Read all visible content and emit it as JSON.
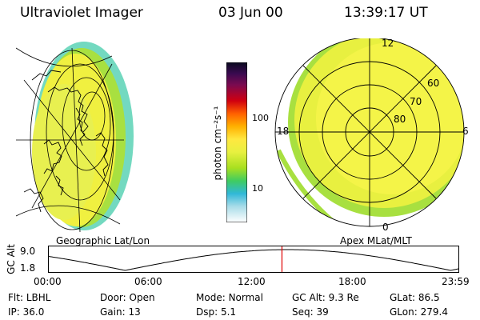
{
  "header": {
    "instrument": "Ultraviolet Imager",
    "date": "03 Jun 00",
    "time": "13:39:17 UT"
  },
  "left_panel": {
    "caption": "Geographic Lat/Lon"
  },
  "right_panel": {
    "caption": "Apex MLat/MLT",
    "mlt_labels": {
      "top": "12",
      "left": "18",
      "right": "6",
      "bottom": "0"
    },
    "lat_labels": [
      "60",
      "70",
      "80"
    ]
  },
  "colorbar": {
    "unit_label": "photon cm⁻²s⁻¹",
    "ticks": [
      "100",
      "10"
    ],
    "colors": [
      "#0a0a20",
      "#3a0a50",
      "#7a0a50",
      "#c00000",
      "#e02020",
      "#ff7000",
      "#ffb000",
      "#ffe040",
      "#e8f040",
      "#b0e020",
      "#50d050",
      "#20c090",
      "#30b8d8",
      "#90d8e8",
      "#d0ecf0",
      "#ffffff"
    ]
  },
  "timeline": {
    "y_axis_label": "GC Alt",
    "y_ticks": [
      "9.0",
      "1.8"
    ],
    "x_ticks": [
      "00:00",
      "06:00",
      "12:00",
      "18:00",
      "23:59"
    ],
    "x_values_hours": [
      0,
      6,
      12,
      18,
      23.983
    ],
    "current_hour": 13.655,
    "marker_color": "#e00000"
  },
  "info": {
    "row1": [
      {
        "key": "Flt:",
        "value": "LBHL"
      },
      {
        "key": "Door:",
        "value": "Open"
      },
      {
        "key": "Mode:",
        "value": "Normal"
      },
      {
        "key": "GC Alt:",
        "value": "9.3 Re"
      },
      {
        "key": "GLat:",
        "value": "86.5"
      }
    ],
    "row2": [
      {
        "key": "IP:",
        "value": "36.0"
      },
      {
        "key": "Gain:",
        "value": "13"
      },
      {
        "key": "Dsp:",
        "value": "5.1"
      },
      {
        "key": "Seq:",
        "value": "39"
      },
      {
        "key": "GLon:",
        "value": "279.4"
      }
    ]
  }
}
